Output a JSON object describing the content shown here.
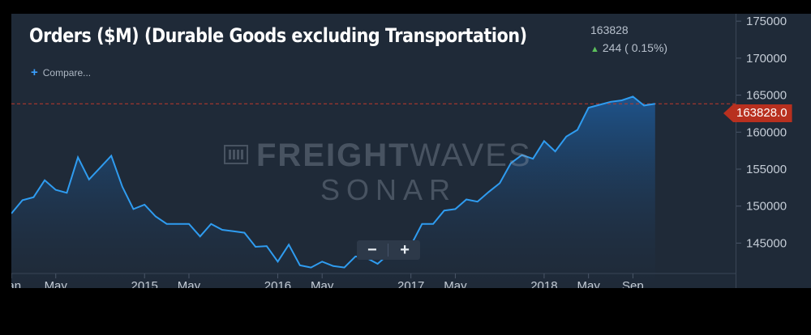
{
  "header": {
    "title": "Orders ($M) (Durable Goods excluding Transportation)",
    "last_value": "163828",
    "change_text": "244 ( 0.15%)",
    "compare_label": "Compare..."
  },
  "watermark": {
    "line1_bold": "FREIGHT",
    "line1_thin": "WAVES",
    "line2": "SONAR"
  },
  "zoom": {
    "minus": "−",
    "plus": "+"
  },
  "price_tag": "163828.0",
  "colors": {
    "line": "#2f9cf0",
    "fill_top": "#1e5a99",
    "panel": "#1f2a38",
    "price_tag": "#b8301f",
    "ref_line": "#c0392b"
  },
  "chart_data": {
    "type": "area",
    "ylim": [
      141000,
      176000
    ],
    "xlim": [
      0,
      64.3
    ],
    "y_ticks": [
      145000,
      150000,
      155000,
      160000,
      165000,
      170000,
      175000
    ],
    "y_tick_labels": [
      "145000",
      "150000",
      "155000",
      "160000",
      "165000",
      "170000",
      "175000"
    ],
    "x_ticks": [
      {
        "pos": 0,
        "label": "Jan"
      },
      {
        "pos": 4,
        "label": "May"
      },
      {
        "pos": 12,
        "label": "2015"
      },
      {
        "pos": 16,
        "label": "May"
      },
      {
        "pos": 24,
        "label": "2016"
      },
      {
        "pos": 28,
        "label": "May"
      },
      {
        "pos": 36,
        "label": "2017"
      },
      {
        "pos": 40,
        "label": "May"
      },
      {
        "pos": 48,
        "label": "2018"
      },
      {
        "pos": 52,
        "label": "May"
      },
      {
        "pos": 56,
        "label": "Sep"
      }
    ],
    "reference_line": 163828,
    "series": [
      {
        "values": [
          149000,
          150800,
          151200,
          153500,
          152200,
          151800,
          156600,
          153600,
          155200,
          156800,
          152600,
          149600,
          150200,
          148600,
          147600,
          147600,
          147600,
          145900,
          147600,
          146800,
          146600,
          146400,
          144500,
          144600,
          142500,
          144800,
          142000,
          141700,
          142500,
          141900,
          141700,
          143200,
          143000,
          142200,
          143500,
          144700,
          144700,
          147600,
          147600,
          149400,
          149600,
          150900,
          150600,
          151900,
          153100,
          155800,
          156900,
          156400,
          158800,
          157400,
          159400,
          160300,
          163300,
          163700,
          164100,
          164300,
          164800,
          163600,
          163828
        ]
      }
    ]
  }
}
